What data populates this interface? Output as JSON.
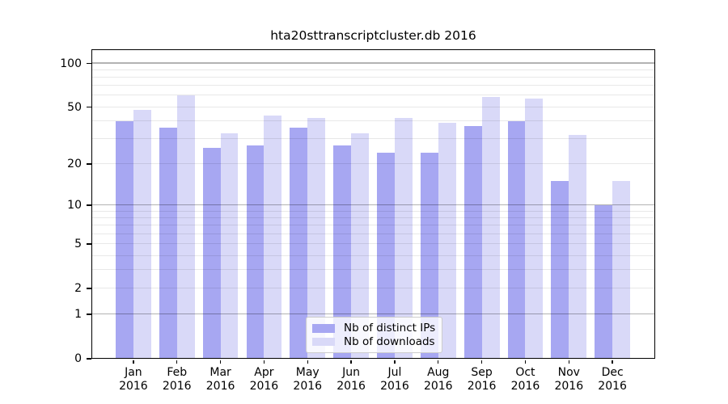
{
  "title": "hta20sttranscriptcluster.db 2016",
  "chart_data": {
    "type": "bar",
    "title": "hta20sttranscriptcluster.db 2016",
    "categories": [
      "Jan 2016",
      "Feb 2016",
      "Mar 2016",
      "Apr 2016",
      "May 2016",
      "Jun 2016",
      "Jul 2016",
      "Aug 2016",
      "Sep 2016",
      "Oct 2016",
      "Nov 2016",
      "Dec 2016"
    ],
    "series": [
      {
        "name": "Nb of distinct IPs",
        "color": "#a7a7f2",
        "values": [
          40,
          36,
          26,
          27,
          36,
          27,
          24,
          24,
          37,
          40,
          15,
          10
        ]
      },
      {
        "name": "Nb of downloads",
        "color": "#d9d9f8",
        "values": [
          48,
          60,
          33,
          44,
          42,
          33,
          42,
          39,
          59,
          57,
          32,
          15
        ]
      }
    ],
    "yscale": "log1p",
    "ylim": [
      0,
      125
    ],
    "y_ticks": [
      100,
      50,
      20,
      10,
      5,
      2,
      1,
      0
    ],
    "grid": true,
    "grid_major_values": [
      1,
      10,
      100
    ],
    "grid_minor_values": [
      2,
      3,
      4,
      5,
      6,
      7,
      8,
      9,
      20,
      30,
      40,
      50,
      60,
      70,
      80,
      90
    ],
    "grid_major_color": "#b3b3b3",
    "grid_minor_color": "#e8e8e8",
    "legend_position": "lower center",
    "xlabel": "",
    "ylabel": ""
  }
}
